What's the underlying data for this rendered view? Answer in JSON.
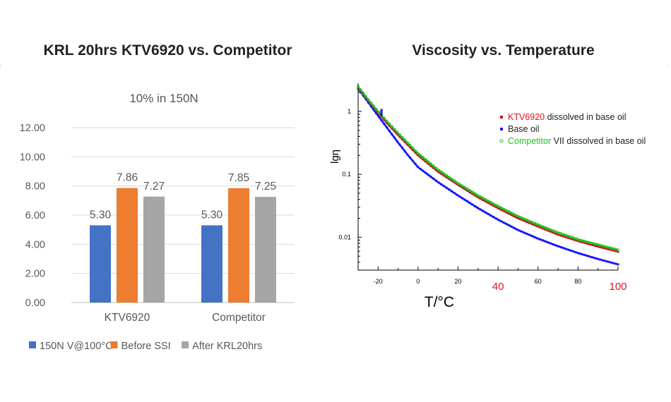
{
  "chart_data": [
    {
      "type": "bar",
      "title": "KRL 20hrs KTV6920 vs. Competitor",
      "subtitle": "10% in 150N",
      "categories": [
        "KTV6920",
        "Competitor"
      ],
      "series": [
        {
          "name": "150N V@100°C",
          "values": [
            5.3,
            5.3
          ],
          "labels": [
            "5.30",
            "5.30"
          ],
          "color": "#4472c4"
        },
        {
          "name": "Before SSI",
          "values": [
            7.86,
            7.85
          ],
          "labels": [
            "7.86",
            "7.85"
          ],
          "color": "#ed7d31"
        },
        {
          "name": "After KRL20hrs",
          "values": [
            7.27,
            7.25
          ],
          "labels": [
            "7.27",
            "7.25"
          ],
          "color": "#a5a5a5"
        }
      ],
      "ylim": [
        0,
        12
      ],
      "yticks": [
        "0.00",
        "2.00",
        "4.00",
        "6.00",
        "8.00",
        "10.00",
        "12.00"
      ],
      "grid": true,
      "legend": "bottom"
    },
    {
      "type": "line",
      "title": "Viscosity vs. Temperature",
      "xlabel": "T/°C",
      "ylabel": "lgη",
      "yscale": "log",
      "xlim": [
        -30,
        100
      ],
      "ylim": [
        0.003,
        2.8
      ],
      "xticks": [
        "-20",
        "0",
        "20",
        "40",
        "60",
        "80",
        "100"
      ],
      "xticks_highlight": [
        "40",
        "100"
      ],
      "highlight_color": "#e8101e",
      "yticks": [
        "0.01",
        "0.1",
        "1"
      ],
      "series": [
        {
          "name": "Base oil",
          "color": "#1414ff",
          "x": [
            -30,
            -25,
            -20,
            -15,
            -10,
            -5,
            0,
            10,
            20,
            30,
            40,
            50,
            60,
            70,
            80,
            90,
            100
          ],
          "y": [
            2.3,
            1.4,
            0.85,
            0.52,
            0.32,
            0.2,
            0.13,
            0.075,
            0.046,
            0.029,
            0.019,
            0.013,
            0.0095,
            0.0072,
            0.0056,
            0.0045,
            0.0037
          ]
        },
        {
          "name": "KTV6920 dissolved in base oil",
          "name_highlight": "KTV6920",
          "name_rest": " dissolved in base oil",
          "color": "#c81414",
          "x": [
            -30,
            -25,
            -20,
            -15,
            -10,
            -5,
            0,
            10,
            20,
            30,
            40,
            50,
            60,
            70,
            80,
            90,
            100
          ],
          "y": [
            2.4,
            1.5,
            0.95,
            0.62,
            0.42,
            0.29,
            0.2,
            0.11,
            0.068,
            0.043,
            0.029,
            0.02,
            0.0148,
            0.011,
            0.0087,
            0.0071,
            0.0059
          ]
        },
        {
          "name": "Competitor VII dissolved in base oil",
          "name_highlight": "Competitor",
          "name_rest": " VII dissolved in base oil",
          "color": "#22c022",
          "x": [
            -30,
            -25,
            -20,
            -15,
            -10,
            -5,
            0,
            10,
            20,
            30,
            40,
            50,
            60,
            70,
            80,
            90,
            100
          ],
          "y": [
            2.5,
            1.55,
            1.0,
            0.66,
            0.45,
            0.31,
            0.215,
            0.118,
            0.072,
            0.046,
            0.031,
            0.0215,
            0.0158,
            0.0118,
            0.0092,
            0.0076,
            0.0063
          ]
        }
      ],
      "legend": "top-right"
    }
  ]
}
